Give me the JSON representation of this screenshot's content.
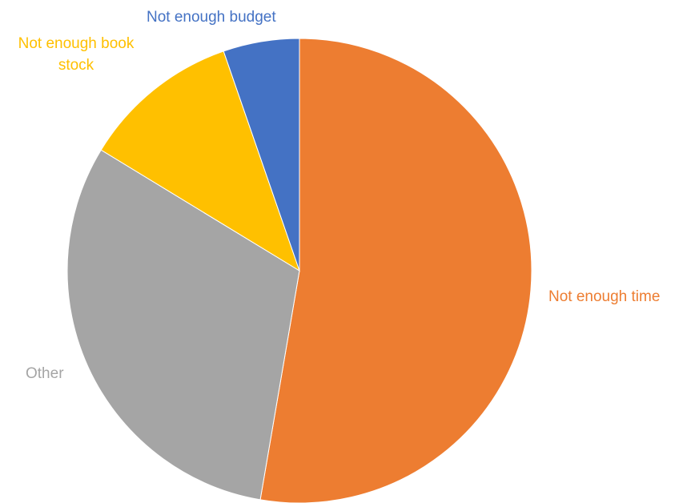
{
  "chart_data": {
    "type": "pie",
    "title": "",
    "slices": [
      {
        "label": "Not enough time",
        "value": 52.7,
        "color": "#ED7D31"
      },
      {
        "label": "Other",
        "value": 31.0,
        "color": "#A5A5A5"
      },
      {
        "label": "Not enough book stock",
        "label_lines": [
          "Not enough book",
          "stock"
        ],
        "value": 11.0,
        "color": "#FFC000"
      },
      {
        "label": "Not enough budget",
        "value": 5.3,
        "color": "#4472C4"
      }
    ],
    "start": "12 o'clock",
    "direction": "clockwise",
    "legend": "none",
    "data_labels": "category names outside slices"
  }
}
